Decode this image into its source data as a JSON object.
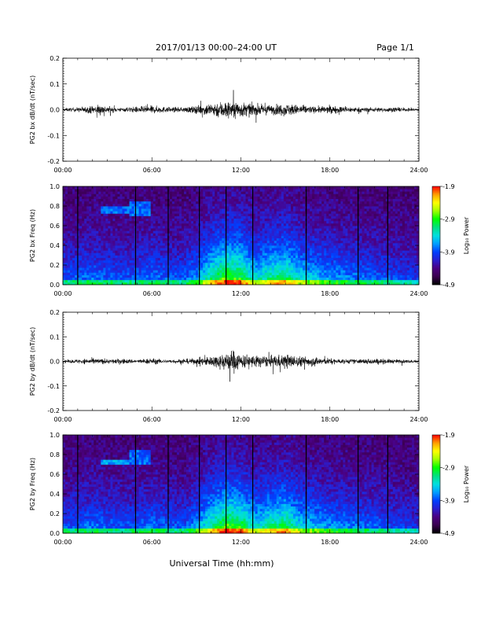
{
  "header": {
    "title": "2017/01/13  00:00–24:00 UT",
    "page": "Page 1/1"
  },
  "footer": {
    "xlabel": "Universal Time (hh:mm)"
  },
  "colors": {
    "trace": "#000000",
    "colormap": [
      "#000000",
      "#3a0050",
      "#4b0082",
      "#2a1fd0",
      "#0040ff",
      "#00a0ff",
      "#00e0e0",
      "#00e080",
      "#00ff00",
      "#a0ff00",
      "#ffff00",
      "#ffa000",
      "#ff0000"
    ]
  },
  "chart_data": [
    {
      "type": "line",
      "ylabel": "PG2 bx dB/dt (nT/sec)",
      "xlim": [
        0,
        24
      ],
      "ylim": [
        -0.2,
        0.2
      ],
      "yticks": [
        "0.2",
        "0.1",
        "0.0",
        "-0.1",
        "-0.2"
      ],
      "ytick_values": [
        0.2,
        0.1,
        0.0,
        -0.1,
        -0.2
      ],
      "xticks": [
        "00:00",
        "06:00",
        "12:00",
        "18:00",
        "24:00"
      ],
      "xtick_values": [
        0,
        6,
        12,
        18,
        24
      ],
      "envelope": {
        "hours": [
          0,
          1,
          2,
          2.5,
          3,
          4,
          5,
          6,
          7,
          8,
          9,
          10,
          11,
          12,
          13,
          14,
          15,
          16,
          17,
          18,
          19,
          20,
          21,
          22,
          23,
          24
        ],
        "amplitude": [
          0.01,
          0.015,
          0.025,
          0.035,
          0.02,
          0.012,
          0.02,
          0.025,
          0.018,
          0.015,
          0.025,
          0.045,
          0.06,
          0.05,
          0.035,
          0.03,
          0.04,
          0.03,
          0.02,
          0.025,
          0.02,
          0.015,
          0.015,
          0.015,
          0.012,
          0.01
        ]
      }
    },
    {
      "type": "heatmap",
      "ylabel": "PG2 bx Freq (Hz)",
      "colorbar_label": "Log₁₀ Power",
      "colorbar_ticks": [
        "-1.9",
        "-2.9",
        "-3.9",
        "-4.9"
      ],
      "colorbar_range": [
        -4.9,
        -1.9
      ],
      "xlim": [
        0,
        24
      ],
      "ylim": [
        0,
        1.0
      ],
      "yticks": [
        "1.0",
        "0.8",
        "0.6",
        "0.4",
        "0.2",
        "0.0"
      ],
      "ytick_values": [
        1.0,
        0.8,
        0.6,
        0.4,
        0.2,
        0.0
      ],
      "xticks": [
        "00:00",
        "06:00",
        "12:00",
        "18:00",
        "24:00"
      ],
      "xtick_values": [
        0,
        6,
        12,
        18,
        24
      ],
      "dark_lines_hours": [
        1.0,
        4.9,
        7.1,
        9.2,
        11.0,
        12.8,
        16.4,
        19.9,
        21.9
      ]
    },
    {
      "type": "line",
      "ylabel": "PG2 by dB/dt (nT/sec)",
      "xlim": [
        0,
        24
      ],
      "ylim": [
        -0.2,
        0.2
      ],
      "yticks": [
        "0.2",
        "0.1",
        "0.0",
        "-0.1",
        "-0.2"
      ],
      "ytick_values": [
        0.2,
        0.1,
        0.0,
        -0.1,
        -0.2
      ],
      "xticks": [
        "00:00",
        "06:00",
        "12:00",
        "18:00",
        "24:00"
      ],
      "xtick_values": [
        0,
        6,
        12,
        18,
        24
      ],
      "envelope": {
        "hours": [
          0,
          1,
          2,
          3,
          4,
          5,
          6,
          7,
          8,
          9,
          10,
          11,
          11.5,
          12,
          13,
          14,
          15,
          16,
          17,
          18,
          19,
          20,
          21,
          22,
          23,
          24
        ],
        "amplitude": [
          0.008,
          0.015,
          0.02,
          0.015,
          0.018,
          0.012,
          0.02,
          0.012,
          0.015,
          0.02,
          0.035,
          0.06,
          0.08,
          0.05,
          0.04,
          0.035,
          0.05,
          0.035,
          0.03,
          0.02,
          0.015,
          0.015,
          0.02,
          0.015,
          0.012,
          0.01
        ]
      }
    },
    {
      "type": "heatmap",
      "ylabel": "PG2 by Freq (Hz)",
      "colorbar_label": "Log₁₀ Power",
      "colorbar_ticks": [
        "-1.9",
        "-2.9",
        "-3.9",
        "-4.9"
      ],
      "colorbar_range": [
        -4.9,
        -1.9
      ],
      "xlim": [
        0,
        24
      ],
      "ylim": [
        0,
        1.0
      ],
      "yticks": [
        "1.0",
        "0.8",
        "0.6",
        "0.4",
        "0.2",
        "0.0"
      ],
      "ytick_values": [
        1.0,
        0.8,
        0.6,
        0.4,
        0.2,
        0.0
      ],
      "xticks": [
        "00:00",
        "06:00",
        "12:00",
        "18:00",
        "24:00"
      ],
      "xtick_values": [
        0,
        6,
        12,
        18,
        24
      ],
      "dark_lines_hours": [
        1.0,
        4.9,
        7.1,
        9.2,
        11.0,
        12.8,
        16.4,
        19.9,
        21.9
      ]
    }
  ]
}
